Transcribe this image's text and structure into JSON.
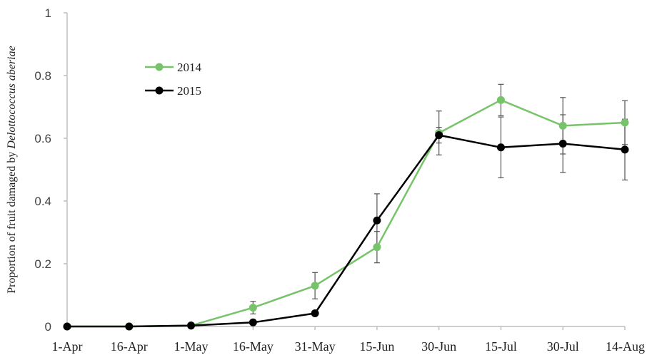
{
  "chart_data": {
    "type": "line",
    "ylabel": {
      "prefix": "Proportion of fruit damaged by ",
      "species": "Delottococcus aberiae"
    },
    "ylim": [
      0,
      1
    ],
    "yticks": [
      "0",
      "0.2",
      "0.4",
      "0.6",
      "0.8",
      "1"
    ],
    "yticks_values": [
      0,
      0.2,
      0.4,
      0.6,
      0.8,
      1
    ],
    "categories": [
      "1-Apr",
      "16-Apr",
      "1-May",
      "16-May",
      "31-May",
      "15-Jun",
      "30-Jun",
      "15-Jul",
      "30-Jul",
      "14-Aug"
    ],
    "legend_position": "upper-left",
    "grid": false,
    "series": [
      {
        "name": "2014",
        "color": "#77c36a",
        "values": [
          0,
          0,
          0.003,
          0.06,
          0.13,
          0.253,
          0.617,
          0.722,
          0.64,
          0.65
        ],
        "errors": [
          0,
          0,
          0,
          0.02,
          0.042,
          0.05,
          0.07,
          0.05,
          0.09,
          0.07
        ]
      },
      {
        "name": "2015",
        "color": "#000000",
        "values": [
          0,
          0,
          0.003,
          0.013,
          0.042,
          0.338,
          0.61,
          0.571,
          0.583,
          0.564
        ],
        "errors": [
          0,
          0,
          0,
          0,
          0.007,
          0.085,
          0.025,
          0.097,
          0.092,
          0.097
        ]
      }
    ]
  }
}
